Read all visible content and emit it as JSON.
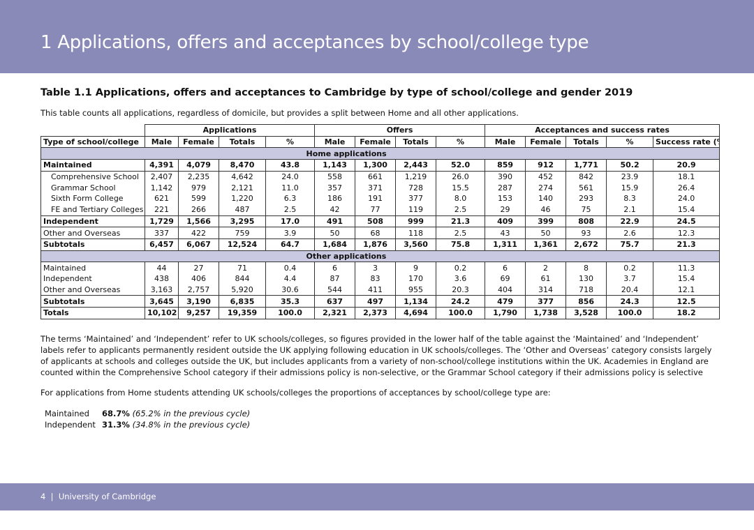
{
  "header": {
    "title": "1 Applications, offers and acceptances by school/college type"
  },
  "table": {
    "title": "Table 1.1  Applications, offers and acceptances to Cambridge by type of school/college and gender 2019",
    "subtitle": "This table counts all applications, regardless of domicile, but provides a split between Home and all other applications.",
    "group_headers": [
      "Applications",
      "Offers",
      "Acceptances and success rates"
    ],
    "column_headers": [
      "Type of school/college",
      "Male",
      "Female",
      "Totals",
      "%",
      "Male",
      "Female",
      "Totals",
      "%",
      "Male",
      "Female",
      "Totals",
      "%",
      "Success rate (%)"
    ],
    "sections": [
      {
        "title": "Home applications",
        "rows": [
          {
            "label": "Maintained",
            "bold": true,
            "indent": false,
            "cells": [
              "4,391",
              "4,079",
              "8,470",
              "43.8",
              "1,143",
              "1,300",
              "2,443",
              "52.0",
              "859",
              "912",
              "1,771",
              "50.2",
              "20.9"
            ]
          },
          {
            "label": "Comprehensive School",
            "bold": false,
            "indent": true,
            "cells": [
              "2,407",
              "2,235",
              "4,642",
              "24.0",
              "558",
              "661",
              "1,219",
              "26.0",
              "390",
              "452",
              "842",
              "23.9",
              "18.1"
            ]
          },
          {
            "label": "Grammar School",
            "bold": false,
            "indent": true,
            "cells": [
              "1,142",
              "979",
              "2,121",
              "11.0",
              "357",
              "371",
              "728",
              "15.5",
              "287",
              "274",
              "561",
              "15.9",
              "26.4"
            ]
          },
          {
            "label": "Sixth Form College",
            "bold": false,
            "indent": true,
            "cells": [
              "621",
              "599",
              "1,220",
              "6.3",
              "186",
              "191",
              "377",
              "8.0",
              "153",
              "140",
              "293",
              "8.3",
              "24.0"
            ]
          },
          {
            "label": "FE and Tertiary Colleges",
            "bold": false,
            "indent": true,
            "cells": [
              "221",
              "266",
              "487",
              "2.5",
              "42",
              "77",
              "119",
              "2.5",
              "29",
              "46",
              "75",
              "2.1",
              "15.4"
            ]
          },
          {
            "label": "Independent",
            "bold": true,
            "indent": false,
            "cells": [
              "1,729",
              "1,566",
              "3,295",
              "17.0",
              "491",
              "508",
              "999",
              "21.3",
              "409",
              "399",
              "808",
              "22.9",
              "24.5"
            ]
          },
          {
            "label": "Other and Overseas",
            "bold": false,
            "indent": false,
            "cells": [
              "337",
              "422",
              "759",
              "3.9",
              "50",
              "68",
              "118",
              "2.5",
              "43",
              "50",
              "93",
              "2.6",
              "12.3"
            ]
          },
          {
            "label": "Subtotals",
            "bold": true,
            "indent": false,
            "cells": [
              "6,457",
              "6,067",
              "12,524",
              "64.7",
              "1,684",
              "1,876",
              "3,560",
              "75.8",
              "1,311",
              "1,361",
              "2,672",
              "75.7",
              "21.3"
            ]
          }
        ]
      },
      {
        "title": "Other applications",
        "rows": [
          {
            "label": "Maintained",
            "bold": false,
            "indent": false,
            "cells": [
              "44",
              "27",
              "71",
              "0.4",
              "6",
              "3",
              "9",
              "0.2",
              "6",
              "2",
              "8",
              "0.2",
              "11.3"
            ]
          },
          {
            "label": "Independent",
            "bold": false,
            "indent": false,
            "cells": [
              "438",
              "406",
              "844",
              "4.4",
              "87",
              "83",
              "170",
              "3.6",
              "69",
              "61",
              "130",
              "3.7",
              "15.4"
            ]
          },
          {
            "label": "Other and Overseas",
            "bold": false,
            "indent": false,
            "cells": [
              "3,163",
              "2,757",
              "5,920",
              "30.6",
              "544",
              "411",
              "955",
              "20.3",
              "404",
              "314",
              "718",
              "20.4",
              "12.1"
            ]
          },
          {
            "label": "Subtotals",
            "bold": true,
            "indent": false,
            "cells": [
              "3,645",
              "3,190",
              "6,835",
              "35.3",
              "637",
              "497",
              "1,134",
              "24.2",
              "479",
              "377",
              "856",
              "24.3",
              "12.5"
            ]
          },
          {
            "label": "Totals",
            "bold": true,
            "indent": false,
            "cells": [
              "10,102",
              "9,257",
              "19,359",
              "100.0",
              "2,321",
              "2,373",
              "4,694",
              "100.0",
              "1,790",
              "1,738",
              "3,528",
              "100.0",
              "18.2"
            ]
          }
        ]
      }
    ]
  },
  "notes": "The terms ‘Maintained’ and ‘Independent’ refer to UK schools/colleges, so figures provided in the lower half of the table against the ‘Maintained’ and ‘Independent’ labels refer to applicants permanently resident outside the UK applying following education in UK schools/colleges. The ‘Other and Overseas’ category consists largely of applicants at schools and colleges outside the UK, but includes applicants from a variety of non-school/college institutions within the UK. Academies in England are counted within the Comprehensive School category if their admissions policy is non-selective, or the Grammar School category if their admissions policy is selective",
  "intro": "For applications from Home students attending UK schools/colleges the proportions of acceptances by school/college type are:",
  "proportions": [
    {
      "label": "Maintained",
      "value": "68.7%",
      "note": "(65.2% in the previous cycle)"
    },
    {
      "label": "Independent",
      "value": "31.3%",
      "note": "(34.8% in the previous cycle)"
    }
  ],
  "footer": {
    "text": "4  |  University of Cambridge"
  }
}
